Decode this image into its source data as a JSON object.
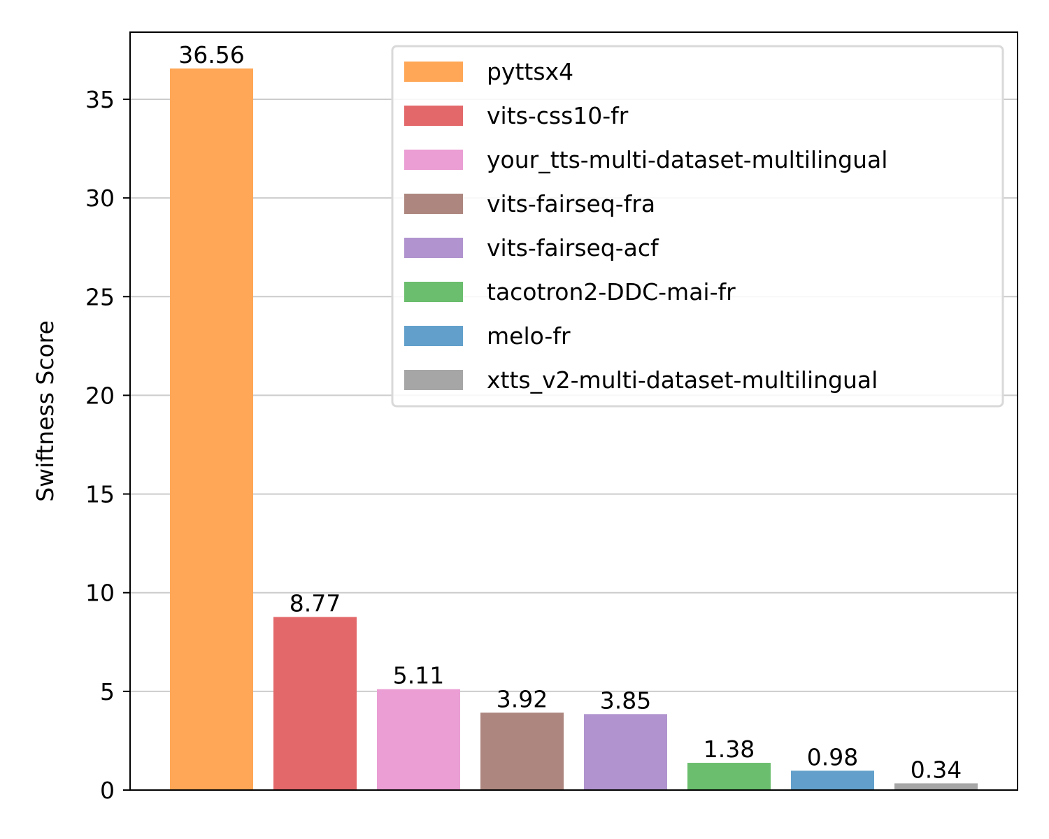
{
  "chart_data": {
    "type": "bar",
    "title": "",
    "xlabel": "",
    "ylabel": "Swiftness Score",
    "ylim": [
      0,
      38.4
    ],
    "yticks": [
      0,
      5,
      10,
      15,
      20,
      25,
      30,
      35
    ],
    "grid": "horizontal",
    "legend_position": "top-right",
    "categories": [
      "pyttsx4",
      "vits-css10-fr",
      "your_tts-multi-dataset-multilingual",
      "vits-fairseq-fra",
      "vits-fairseq-acf",
      "tacotron2-DDC-mai-fr",
      "melo-fr",
      "xtts_v2-multi-dataset-multilingual"
    ],
    "values": [
      36.56,
      8.77,
      5.11,
      3.92,
      3.85,
      1.38,
      0.98,
      0.34
    ],
    "value_labels": [
      "36.56",
      "8.77",
      "5.11",
      "3.92",
      "3.85",
      "1.38",
      "0.98",
      "0.34"
    ],
    "colors": [
      "#ffa756",
      "#e3686a",
      "#ea9ed3",
      "#ad877f",
      "#b194cf",
      "#6bbe6d",
      "#62a0cb",
      "#a6a6a6"
    ]
  }
}
